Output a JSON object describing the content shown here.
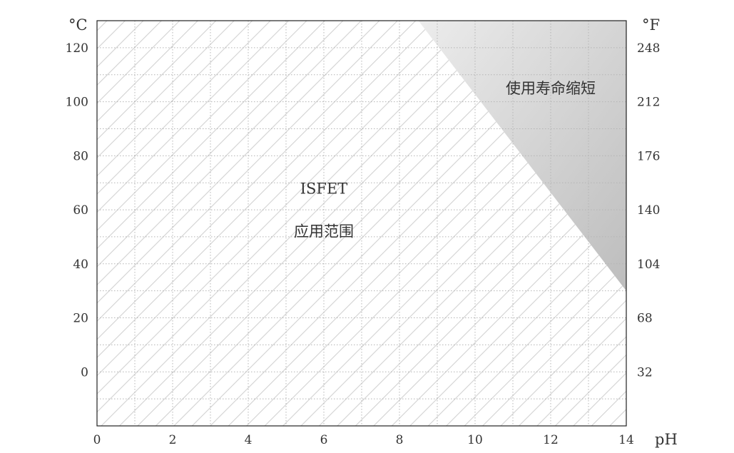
{
  "chart_data": {
    "type": "area",
    "title": "",
    "x_axis": {
      "label": "pH",
      "range": [
        0,
        14
      ],
      "ticks": [
        0,
        2,
        4,
        6,
        8,
        10,
        12,
        14
      ],
      "tick_labels": [
        "0",
        "2",
        "4",
        "6",
        "8",
        "10",
        "12",
        "14"
      ],
      "minor_grid_step": 1
    },
    "y_axis_left": {
      "unit": "°C",
      "range": [
        -20,
        130
      ],
      "ticks": [
        0,
        20,
        40,
        60,
        80,
        100,
        120
      ],
      "tick_labels": [
        "0",
        "20",
        "40",
        "60",
        "80",
        "100",
        "120"
      ],
      "minor_grid_step": 10
    },
    "y_axis_right": {
      "unit": "°F",
      "ticks_at_celsius": [
        0,
        20,
        40,
        60,
        80,
        100,
        120
      ],
      "tick_labels": [
        "32",
        "68",
        "104",
        "140",
        "176",
        "212",
        "248"
      ]
    },
    "grid": true,
    "regions": [
      {
        "name": "application-range",
        "label_lines": [
          "ISFET",
          "应用范围"
        ],
        "fill": "hatched",
        "label_at": [
          6.0,
          58.0
        ],
        "boundary": [
          [
            0,
            -20
          ],
          [
            14,
            -20
          ],
          [
            14,
            30
          ],
          [
            8.5,
            130
          ],
          [
            0,
            130
          ]
        ]
      },
      {
        "name": "reduced-lifetime",
        "label_lines": [
          "使用寿命缩短"
        ],
        "fill": "gradient-gray",
        "label_at": [
          12.0,
          103.0
        ],
        "boundary": [
          [
            8.5,
            130
          ],
          [
            14,
            130
          ],
          [
            14,
            30
          ]
        ]
      }
    ],
    "colors": {
      "hatch": "#d2d2d2",
      "grid": "#b4b4b4",
      "axis": "#222222",
      "shade_dark": "#bdbdbd",
      "shade_light": "#ececec",
      "text": "#333333"
    }
  }
}
